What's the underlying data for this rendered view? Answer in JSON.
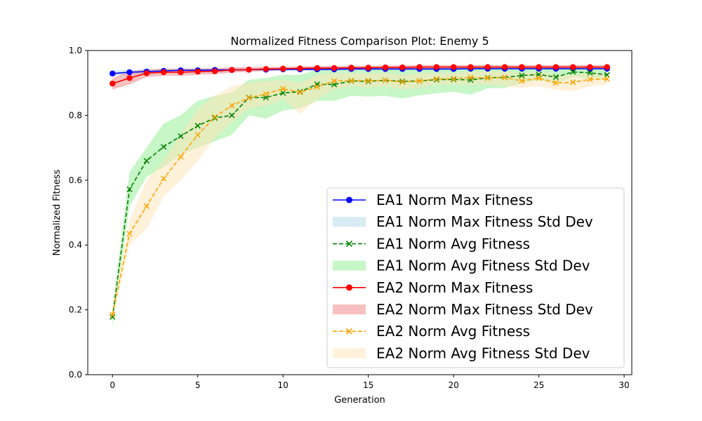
{
  "chart_data": {
    "type": "line",
    "title": "Normalized Fitness Comparison Plot: Enemy 5",
    "xlabel": "Generation",
    "ylabel": "Normalized Fitness",
    "xlim": [
      -1.45,
      30.45
    ],
    "ylim": [
      0.0,
      1.0
    ],
    "xticks": [
      0,
      5,
      10,
      15,
      20,
      25,
      30
    ],
    "yticks": [
      0.0,
      0.2,
      0.4,
      0.6,
      0.8,
      1.0
    ],
    "xtick_labels": [
      "0",
      "5",
      "10",
      "15",
      "20",
      "25",
      "30"
    ],
    "ytick_labels": [
      "0.0",
      "0.2",
      "0.4",
      "0.6",
      "0.8",
      "1.0"
    ],
    "grid": false,
    "legend_position": "lower-right",
    "x": [
      0,
      1,
      2,
      3,
      4,
      5,
      6,
      7,
      8,
      9,
      10,
      11,
      12,
      13,
      14,
      15,
      16,
      17,
      18,
      19,
      20,
      21,
      22,
      23,
      24,
      25,
      26,
      27,
      28,
      29
    ],
    "series": [
      {
        "name": "EA1 Norm Max Fitness",
        "style": "line-circle",
        "color": "#0000ff",
        "values": [
          0.929,
          0.933,
          0.935,
          0.937,
          0.939,
          0.939,
          0.94,
          0.94,
          0.941,
          0.941,
          0.942,
          0.942,
          0.942,
          0.942,
          0.943,
          0.943,
          0.943,
          0.943,
          0.943,
          0.943,
          0.943,
          0.944,
          0.944,
          0.944,
          0.944,
          0.944,
          0.944,
          0.944,
          0.944,
          0.944
        ]
      },
      {
        "name": "EA1 Norm Max Fitness Std Dev",
        "style": "band",
        "color": "#add8e6",
        "lower": [
          0.92,
          0.925,
          0.928,
          0.931,
          0.933,
          0.934,
          0.935,
          0.935,
          0.936,
          0.937,
          0.937,
          0.937,
          0.937,
          0.937,
          0.938,
          0.938,
          0.938,
          0.938,
          0.938,
          0.938,
          0.938,
          0.939,
          0.939,
          0.939,
          0.939,
          0.939,
          0.939,
          0.939,
          0.939,
          0.939
        ],
        "upper": [
          0.938,
          0.941,
          0.942,
          0.943,
          0.945,
          0.945,
          0.945,
          0.945,
          0.946,
          0.946,
          0.947,
          0.947,
          0.947,
          0.947,
          0.948,
          0.948,
          0.948,
          0.948,
          0.948,
          0.948,
          0.948,
          0.949,
          0.949,
          0.949,
          0.949,
          0.949,
          0.949,
          0.949,
          0.949,
          0.949
        ]
      },
      {
        "name": "EA1 Norm Avg Fitness",
        "style": "dashed-x",
        "color": "#008000",
        "values": [
          0.178,
          0.572,
          0.66,
          0.703,
          0.736,
          0.768,
          0.792,
          0.8,
          0.855,
          0.855,
          0.869,
          0.873,
          0.896,
          0.895,
          0.906,
          0.905,
          0.908,
          0.905,
          0.906,
          0.91,
          0.911,
          0.909,
          0.916,
          0.917,
          0.923,
          0.926,
          0.918,
          0.934,
          0.931,
          0.925
        ]
      },
      {
        "name": "EA1 Norm Avg Fitness Std Dev",
        "style": "band",
        "color": "#90ee90",
        "lower": [
          0.15,
          0.52,
          0.61,
          0.64,
          0.68,
          0.7,
          0.72,
          0.74,
          0.8,
          0.79,
          0.815,
          0.822,
          0.845,
          0.845,
          0.86,
          0.858,
          0.86,
          0.852,
          0.862,
          0.868,
          0.873,
          0.864,
          0.884,
          0.884,
          0.9,
          0.908,
          0.898,
          0.918,
          0.914,
          0.91
        ],
        "upper": [
          0.2,
          0.625,
          0.7,
          0.775,
          0.8,
          0.845,
          0.86,
          0.87,
          0.91,
          0.915,
          0.925,
          0.925,
          0.94,
          0.94,
          0.94,
          0.94,
          0.945,
          0.945,
          0.945,
          0.945,
          0.948,
          0.95,
          0.948,
          0.948,
          0.95,
          0.95,
          0.945,
          0.95,
          0.95,
          0.945
        ]
      },
      {
        "name": "EA2 Norm Max Fitness",
        "style": "line-circle",
        "color": "#ff0000",
        "values": [
          0.898,
          0.915,
          0.93,
          0.933,
          0.933,
          0.935,
          0.936,
          0.94,
          0.941,
          0.943,
          0.944,
          0.945,
          0.946,
          0.946,
          0.947,
          0.947,
          0.948,
          0.948,
          0.949,
          0.949,
          0.949,
          0.949,
          0.949,
          0.949,
          0.949,
          0.949,
          0.949,
          0.949,
          0.949,
          0.949
        ]
      },
      {
        "name": "EA2 Norm Max Fitness Std Dev",
        "style": "band",
        "color": "#f08080",
        "lower": [
          0.88,
          0.895,
          0.918,
          0.922,
          0.922,
          0.925,
          0.927,
          0.932,
          0.934,
          0.937,
          0.939,
          0.94,
          0.941,
          0.941,
          0.942,
          0.942,
          0.943,
          0.943,
          0.944,
          0.944,
          0.944,
          0.944,
          0.944,
          0.944,
          0.944,
          0.944,
          0.944,
          0.944,
          0.944,
          0.944
        ],
        "upper": [
          0.915,
          0.935,
          0.942,
          0.944,
          0.944,
          0.945,
          0.946,
          0.948,
          0.949,
          0.95,
          0.95,
          0.951,
          0.952,
          0.952,
          0.953,
          0.953,
          0.954,
          0.954,
          0.955,
          0.955,
          0.955,
          0.955,
          0.955,
          0.955,
          0.955,
          0.955,
          0.955,
          0.955,
          0.955,
          0.955
        ]
      },
      {
        "name": "EA2 Norm Avg Fitness",
        "style": "dashed-x",
        "color": "#ffa500",
        "values": [
          0.185,
          0.435,
          0.52,
          0.605,
          0.672,
          0.74,
          0.795,
          0.83,
          0.854,
          0.866,
          0.882,
          0.871,
          0.888,
          0.906,
          0.907,
          0.907,
          0.908,
          0.903,
          0.906,
          0.912,
          0.913,
          0.917,
          0.915,
          0.917,
          0.906,
          0.915,
          0.9,
          0.902,
          0.911,
          0.912
        ]
      },
      {
        "name": "EA2 Norm Avg Fitness Std Dev",
        "style": "band",
        "color": "#ffe4b5",
        "lower": [
          0.17,
          0.4,
          0.45,
          0.55,
          0.6,
          0.66,
          0.73,
          0.78,
          0.82,
          0.83,
          0.85,
          0.805,
          0.85,
          0.88,
          0.89,
          0.885,
          0.89,
          0.88,
          0.885,
          0.895,
          0.895,
          0.895,
          0.895,
          0.89,
          0.885,
          0.89,
          0.88,
          0.875,
          0.89,
          0.895
        ]
      },
      {
        "name": "",
        "style": "band-upper",
        "color": "#ffe4b5",
        "upper": [
          0.2,
          0.475,
          0.6,
          0.66,
          0.74,
          0.82,
          0.86,
          0.89,
          0.9,
          0.905,
          0.91,
          0.9,
          0.925,
          0.93,
          0.93,
          0.93,
          0.93,
          0.925,
          0.93,
          0.93,
          0.93,
          0.935,
          0.935,
          0.935,
          0.93,
          0.935,
          0.925,
          0.925,
          0.93,
          0.93
        ]
      }
    ]
  }
}
